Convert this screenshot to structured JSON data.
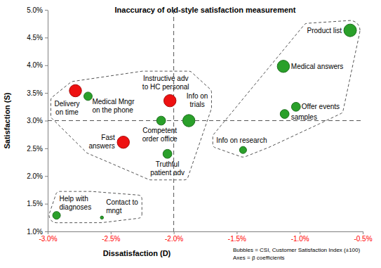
{
  "chart_data": {
    "type": "bubble",
    "title": "Inaccuracy of old-style satisfaction measurement",
    "x_label": "Dissatisfaction (D)",
    "y_label": "Satisfaction (S)",
    "annotations": [
      "Bubbles = CSI, Customer Satisfaction Index (±100)",
      "Axes = β coefficients"
    ],
    "xlim": [
      -3,
      -0.5
    ],
    "ylim": [
      1,
      5
    ],
    "xticks": [
      {
        "value": -3,
        "label": "-3.0%"
      },
      {
        "value": -2.5,
        "label": "-2.5%"
      },
      {
        "value": -2,
        "label": "-2.0%"
      },
      {
        "value": -1.5,
        "label": "-1.5%"
      },
      {
        "value": -1,
        "label": "-1.0%"
      },
      {
        "value": -0.5,
        "label": "-0.5%"
      }
    ],
    "yticks": [
      {
        "value": 1,
        "label": "1.0%"
      },
      {
        "value": 1.5,
        "label": "1.5%"
      },
      {
        "value": 2,
        "label": "2.0%"
      },
      {
        "value": 2.5,
        "label": "2.5%"
      },
      {
        "value": 3,
        "label": "3.0%"
      },
      {
        "value": 3.5,
        "label": "3.5%"
      },
      {
        "value": 4,
        "label": "4.0%"
      },
      {
        "value": 4.5,
        "label": "4.5%"
      },
      {
        "value": 5,
        "label": "5.0%"
      }
    ],
    "reference_lines": {
      "x": -2,
      "y": 3
    },
    "labels": [
      "Product list",
      "Medical answers",
      "Offer events",
      "samples",
      "Info on research",
      "Info on\ntrials",
      "Instructive adv\nto HC personal",
      "Competent\norder office",
      "Truthful\npatient adv",
      "Fast\nanswers",
      "Medical Mngr\non the phone",
      "Delivery\non time",
      "Help with\ndiagnoses",
      "Contact to\nmngt"
    ],
    "x": [
      -0.6,
      -1.13,
      -1.03,
      -1.12,
      -1.45,
      -1.88,
      -2.03,
      -2.1,
      -2.05,
      -2.4,
      -2.68,
      -2.78,
      -2.93,
      -2.57
    ],
    "values": [
      4.63,
      3.98,
      3.25,
      3.12,
      2.47,
      3.0,
      3.36,
      3.0,
      2.4,
      2.61,
      3.44,
      3.54,
      1.29,
      1.25
    ],
    "sizes": [
      80,
      75,
      40,
      40,
      25,
      75,
      75,
      40,
      40,
      75,
      35,
      75,
      30,
      5
    ],
    "colors": [
      "#2aa02a",
      "#2aa02a",
      "#2aa02a",
      "#2aa02a",
      "#2aa02a",
      "#2aa02a",
      "#ee1111",
      "#2aa02a",
      "#2aa02a",
      "#ee1111",
      "#2aa02a",
      "#ee1111",
      "#2aa02a",
      "#2aa02a"
    ],
    "groups": [
      [
        0,
        1,
        2,
        3,
        4
      ],
      [
        5,
        6,
        7,
        8,
        9,
        10,
        11
      ],
      [
        12,
        13
      ]
    ]
  }
}
